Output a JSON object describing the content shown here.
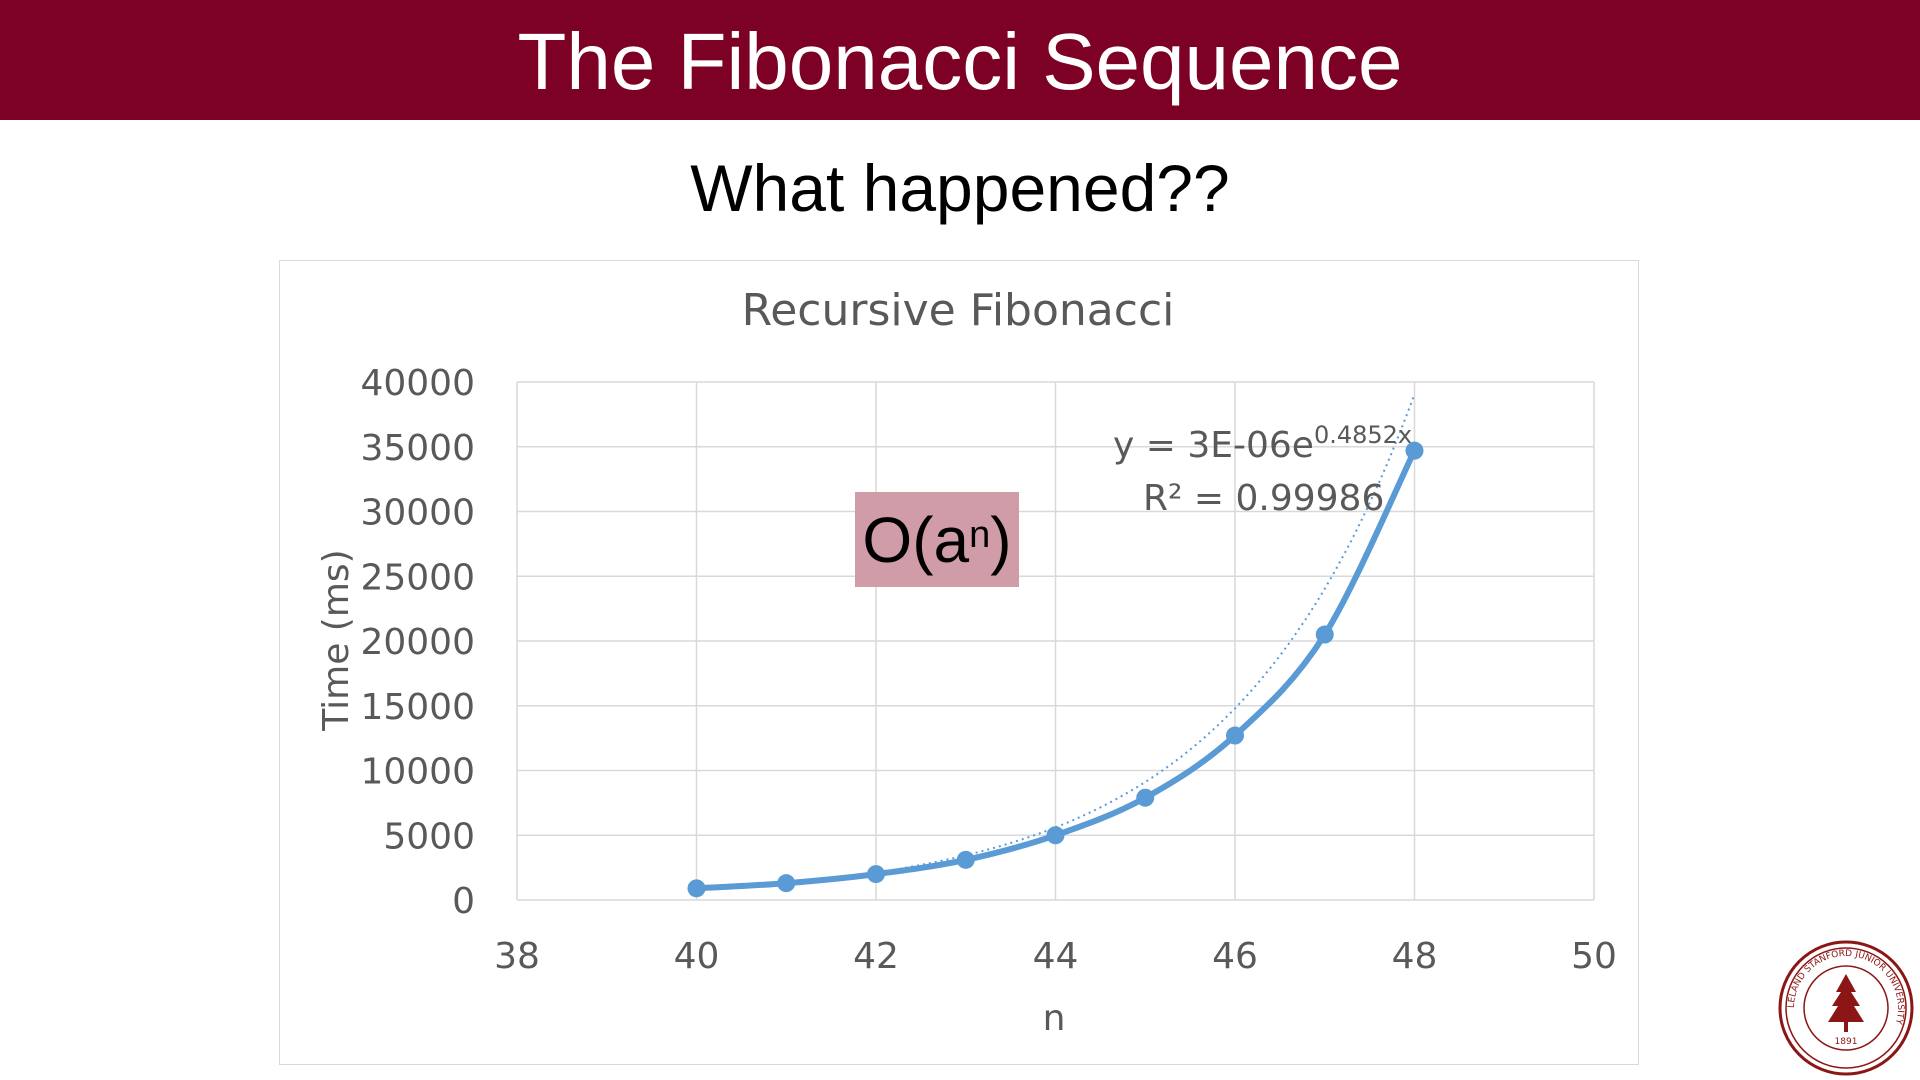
{
  "slide": {
    "title": "The Fibonacci Sequence",
    "subtitle": "What happened??",
    "complexity_base": "O(a",
    "complexity_exp": "n",
    "complexity_close": ")",
    "title_bar_color": "#7d0124",
    "highlight_color": "#cf9ca7"
  },
  "seal": {
    "icon": "stanford-seal-icon",
    "text_ring": "LELAND STANFORD JUNIOR UNIVERSITY",
    "year": "1891"
  },
  "chart_data": {
    "type": "scatter",
    "title": "Recursive Fibonacci",
    "xlabel": "n",
    "ylabel": "Time (ms)",
    "xlim": [
      38,
      50
    ],
    "ylim": [
      0,
      40000
    ],
    "x_ticks": [
      38,
      40,
      42,
      44,
      46,
      48,
      50
    ],
    "y_ticks": [
      0,
      5000,
      10000,
      15000,
      20000,
      25000,
      30000,
      35000,
      40000
    ],
    "grid": true,
    "series": [
      {
        "x": [
          40,
          41,
          42,
          43,
          44,
          45,
          46,
          47,
          48
        ],
        "y": [
          900,
          1300,
          2000,
          3100,
          5000,
          7900,
          12700,
          20500,
          34700
        ],
        "color": "#5b9bd5",
        "smooth": true
      }
    ],
    "trendline": {
      "type": "exponential",
      "equation_main": "y = 3E-06e",
      "equation_exp": "0.4852x",
      "r_squared": "R² = 0.99986",
      "a": 3e-06,
      "b": 0.4852
    }
  }
}
